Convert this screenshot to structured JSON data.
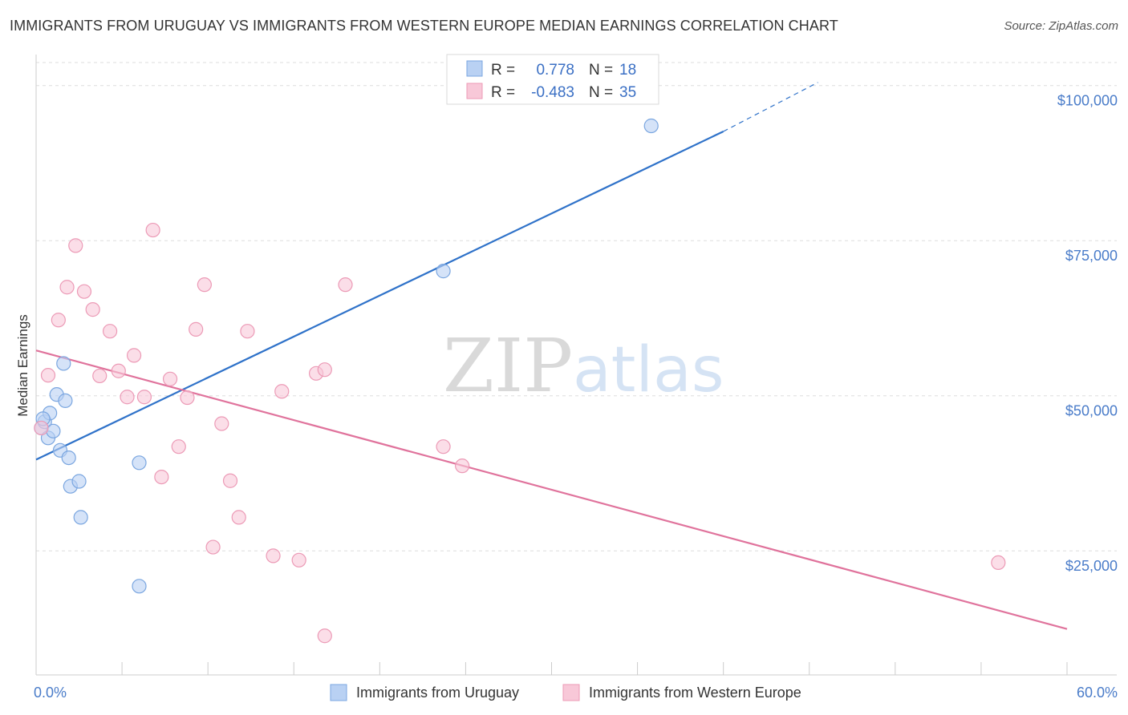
{
  "title": "IMMIGRANTS FROM URUGUAY VS IMMIGRANTS FROM WESTERN EUROPE MEDIAN EARNINGS CORRELATION CHART",
  "source": "Source: ZipAtlas.com",
  "watermark": {
    "zip": "ZIP",
    "atlas": "atlas"
  },
  "colors": {
    "blue_fill": "#b9d1f3",
    "blue_stroke": "#7aa6e0",
    "blue_line": "#2f72c9",
    "pink_fill": "#f8c8d8",
    "pink_stroke": "#ec9ab6",
    "pink_line": "#e0739c",
    "grid": "#dddddd",
    "axis_text": "#4a7cc9"
  },
  "stats_legend": [
    {
      "r_label": "R =",
      "r_value": "0.778",
      "n_label": "N =",
      "n_value": "18"
    },
    {
      "r_label": "R =",
      "r_value": "-0.483",
      "n_label": "N =",
      "n_value": "35"
    }
  ],
  "chart_data": {
    "type": "scatter",
    "ylabel": "Median Earnings",
    "xlim": [
      0,
      60
    ],
    "ylim": [
      5000,
      105000
    ],
    "x_tick_labels": [
      "0.0%",
      "60.0%"
    ],
    "y_ticks": [
      {
        "value": 25000,
        "label": "$25,000"
      },
      {
        "value": 50000,
        "label": "$50,000"
      },
      {
        "value": 75000,
        "label": "$75,000"
      },
      {
        "value": 100000,
        "label": "$100,000"
      }
    ],
    "grid": true,
    "legend_position": "bottom",
    "series": [
      {
        "name": "Immigrants from Uruguay",
        "color": "blue",
        "points": [
          [
            0.3,
            44800
          ],
          [
            0.5,
            45800
          ],
          [
            0.7,
            43200
          ],
          [
            0.8,
            47200
          ],
          [
            1.0,
            44300
          ],
          [
            1.2,
            50200
          ],
          [
            1.4,
            41200
          ],
          [
            1.6,
            55200
          ],
          [
            1.7,
            49200
          ],
          [
            1.9,
            40000
          ],
          [
            2.0,
            35400
          ],
          [
            2.5,
            36200
          ],
          [
            2.6,
            30400
          ],
          [
            6.0,
            39200
          ],
          [
            6.0,
            19300
          ],
          [
            23.7,
            70100
          ],
          [
            35.8,
            93500
          ],
          [
            0.4,
            46300
          ]
        ],
        "trend": {
          "x0": 0,
          "y0": 39700,
          "x1": 40,
          "y1": 92600,
          "dash_x1": 45.5,
          "dash_y1": 100500
        }
      },
      {
        "name": "Immigrants from Western Europe",
        "color": "pink",
        "points": [
          [
            0.3,
            44800
          ],
          [
            0.7,
            53300
          ],
          [
            1.3,
            62200
          ],
          [
            1.8,
            67500
          ],
          [
            2.3,
            74200
          ],
          [
            2.8,
            66800
          ],
          [
            3.3,
            63900
          ],
          [
            3.7,
            53200
          ],
          [
            4.3,
            60400
          ],
          [
            4.8,
            54000
          ],
          [
            5.3,
            49800
          ],
          [
            5.7,
            56500
          ],
          [
            6.3,
            49800
          ],
          [
            6.8,
            76700
          ],
          [
            7.3,
            36900
          ],
          [
            7.8,
            52700
          ],
          [
            8.3,
            41800
          ],
          [
            8.8,
            49700
          ],
          [
            9.3,
            60700
          ],
          [
            9.8,
            67900
          ],
          [
            10.3,
            25600
          ],
          [
            10.8,
            45500
          ],
          [
            11.3,
            36300
          ],
          [
            11.8,
            30400
          ],
          [
            12.3,
            60400
          ],
          [
            13.8,
            24200
          ],
          [
            14.3,
            50700
          ],
          [
            15.3,
            23500
          ],
          [
            16.3,
            53600
          ],
          [
            16.8,
            54200
          ],
          [
            16.8,
            11300
          ],
          [
            18.0,
            67900
          ],
          [
            23.7,
            41800
          ],
          [
            24.8,
            38700
          ],
          [
            56.0,
            23100
          ]
        ],
        "trend": {
          "x0": 0,
          "y0": 57300,
          "x1": 60,
          "y1": 12400
        }
      }
    ]
  }
}
